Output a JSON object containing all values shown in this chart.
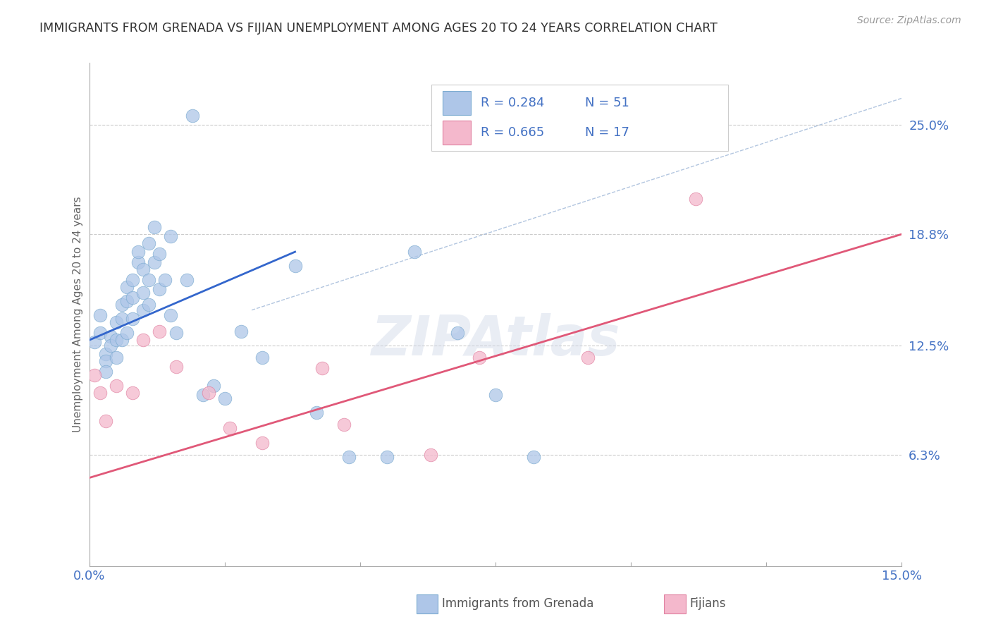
{
  "title": "IMMIGRANTS FROM GRENADA VS FIJIAN UNEMPLOYMENT AMONG AGES 20 TO 24 YEARS CORRELATION CHART",
  "source": "Source: ZipAtlas.com",
  "ylabel": "Unemployment Among Ages 20 to 24 years",
  "xlim": [
    0.0,
    0.15
  ],
  "ylim": [
    0.0,
    0.285
  ],
  "ytick_labels_right": [
    "25.0%",
    "18.8%",
    "12.5%",
    "6.3%"
  ],
  "ytick_values_right": [
    0.25,
    0.188,
    0.125,
    0.063
  ],
  "background_color": "#ffffff",
  "grid_color": "#cccccc",
  "title_color": "#333333",
  "axis_label_color": "#666666",
  "tick_color": "#4472c4",
  "scatter_blue_color": "#aec6e8",
  "scatter_blue_edge": "#7aaad0",
  "scatter_pink_color": "#f4b8cc",
  "scatter_pink_edge": "#e080a0",
  "trend_blue_color": "#3366cc",
  "trend_pink_color": "#e05878",
  "ref_line_color": "#a0b8d8",
  "blue_points_x": [
    0.001,
    0.002,
    0.002,
    0.003,
    0.003,
    0.003,
    0.004,
    0.004,
    0.005,
    0.005,
    0.005,
    0.006,
    0.006,
    0.006,
    0.007,
    0.007,
    0.007,
    0.008,
    0.008,
    0.008,
    0.009,
    0.009,
    0.01,
    0.01,
    0.01,
    0.011,
    0.011,
    0.011,
    0.012,
    0.012,
    0.013,
    0.013,
    0.014,
    0.015,
    0.015,
    0.016,
    0.018,
    0.019,
    0.021,
    0.023,
    0.025,
    0.028,
    0.032,
    0.038,
    0.042,
    0.048,
    0.055,
    0.06,
    0.068,
    0.075,
    0.082
  ],
  "blue_points_y": [
    0.127,
    0.132,
    0.142,
    0.12,
    0.116,
    0.11,
    0.13,
    0.125,
    0.138,
    0.128,
    0.118,
    0.148,
    0.14,
    0.128,
    0.158,
    0.15,
    0.132,
    0.162,
    0.152,
    0.14,
    0.172,
    0.178,
    0.168,
    0.155,
    0.145,
    0.183,
    0.162,
    0.148,
    0.192,
    0.172,
    0.177,
    0.157,
    0.162,
    0.187,
    0.142,
    0.132,
    0.162,
    0.255,
    0.097,
    0.102,
    0.095,
    0.133,
    0.118,
    0.17,
    0.087,
    0.062,
    0.062,
    0.178,
    0.132,
    0.097,
    0.062
  ],
  "pink_points_x": [
    0.001,
    0.002,
    0.003,
    0.005,
    0.008,
    0.01,
    0.013,
    0.016,
    0.022,
    0.026,
    0.032,
    0.043,
    0.047,
    0.063,
    0.072,
    0.092,
    0.112
  ],
  "pink_points_y": [
    0.108,
    0.098,
    0.082,
    0.102,
    0.098,
    0.128,
    0.133,
    0.113,
    0.098,
    0.078,
    0.07,
    0.112,
    0.08,
    0.063,
    0.118,
    0.118,
    0.208
  ],
  "blue_trend_x": [
    0.0,
    0.038
  ],
  "blue_trend_y": [
    0.128,
    0.178
  ],
  "pink_trend_x": [
    0.0,
    0.15
  ],
  "pink_trend_y": [
    0.05,
    0.188
  ],
  "ref_line_x": [
    0.03,
    0.15
  ],
  "ref_line_y": [
    0.145,
    0.265
  ]
}
